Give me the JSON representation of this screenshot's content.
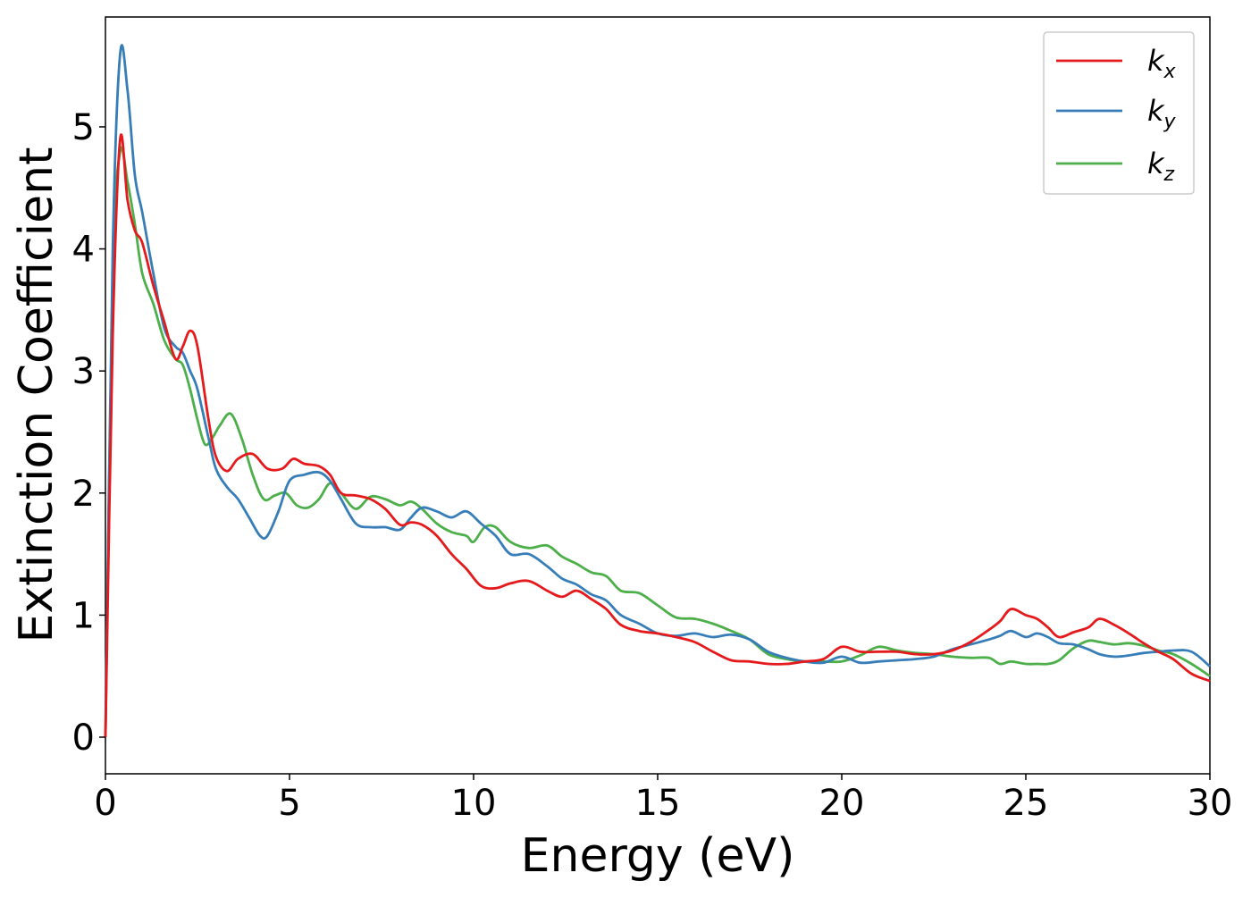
{
  "chart_data": {
    "type": "line",
    "title": "",
    "xlabel": "Energy (eV)",
    "ylabel": "Extinction Coefficient",
    "xlim": [
      0,
      30
    ],
    "ylim": [
      -0.3,
      5.9
    ],
    "xticks": [
      0,
      5,
      10,
      15,
      20,
      25,
      30
    ],
    "xtick_labels": [
      "0",
      "5",
      "10",
      "15",
      "20",
      "25",
      "30"
    ],
    "yticks": [
      0,
      1,
      2,
      3,
      4,
      5
    ],
    "ytick_labels": [
      "0",
      "1",
      "2",
      "3",
      "4",
      "5"
    ],
    "grid": false,
    "legend_position": "top-right",
    "series": [
      {
        "name": "k_x",
        "name_base": "k",
        "name_sub": "x",
        "color": "#e41a1c",
        "x": [
          0,
          0.2,
          0.4,
          0.6,
          0.8,
          1.0,
          1.3,
          1.6,
          1.9,
          2.1,
          2.3,
          2.5,
          2.8,
          3.0,
          3.3,
          3.6,
          4.0,
          4.4,
          4.8,
          5.1,
          5.4,
          5.8,
          6.1,
          6.4,
          6.8,
          7.2,
          7.6,
          8.0,
          8.3,
          8.6,
          9.0,
          9.4,
          9.8,
          10.2,
          10.6,
          11.0,
          11.5,
          12.0,
          12.4,
          12.8,
          13.2,
          13.6,
          14.0,
          14.5,
          15.0,
          15.5,
          16.0,
          16.5,
          17.0,
          17.5,
          18.0,
          18.5,
          19.0,
          19.5,
          20.0,
          20.5,
          21.0,
          21.5,
          22.0,
          22.5,
          23.0,
          23.5,
          24.0,
          24.3,
          24.6,
          25.0,
          25.3,
          25.6,
          25.9,
          26.3,
          26.7,
          27.0,
          27.4,
          27.8,
          28.2,
          28.6,
          29.0,
          29.5,
          30.0
        ],
        "y": [
          0,
          3.3,
          4.9,
          4.4,
          4.15,
          4.05,
          3.7,
          3.4,
          3.1,
          3.2,
          3.33,
          3.2,
          2.6,
          2.3,
          2.18,
          2.28,
          2.32,
          2.2,
          2.2,
          2.28,
          2.24,
          2.22,
          2.15,
          2.0,
          1.98,
          1.95,
          1.87,
          1.74,
          1.76,
          1.74,
          1.65,
          1.5,
          1.38,
          1.24,
          1.22,
          1.26,
          1.28,
          1.2,
          1.15,
          1.2,
          1.13,
          1.05,
          0.92,
          0.87,
          0.85,
          0.82,
          0.78,
          0.7,
          0.63,
          0.62,
          0.6,
          0.6,
          0.62,
          0.64,
          0.74,
          0.7,
          0.7,
          0.7,
          0.68,
          0.68,
          0.71,
          0.78,
          0.88,
          0.95,
          1.05,
          1.0,
          0.97,
          0.9,
          0.82,
          0.86,
          0.9,
          0.97,
          0.92,
          0.85,
          0.77,
          0.7,
          0.64,
          0.52,
          0.46
        ]
      },
      {
        "name": "k_y",
        "name_base": "k",
        "name_sub": "y",
        "color": "#377eb8",
        "x": [
          0,
          0.2,
          0.4,
          0.6,
          0.8,
          1.0,
          1.3,
          1.6,
          1.9,
          2.1,
          2.3,
          2.5,
          2.8,
          3.0,
          3.3,
          3.6,
          3.9,
          4.2,
          4.4,
          4.7,
          5.0,
          5.4,
          5.8,
          6.1,
          6.4,
          6.8,
          7.2,
          7.6,
          8.0,
          8.3,
          8.6,
          9.0,
          9.4,
          9.8,
          10.2,
          10.6,
          11.0,
          11.5,
          12.0,
          12.4,
          12.8,
          13.2,
          13.6,
          14.0,
          14.5,
          15.0,
          15.5,
          16.0,
          16.5,
          17.0,
          17.5,
          18.0,
          18.5,
          19.0,
          19.5,
          20.0,
          20.5,
          21.0,
          21.5,
          22.0,
          22.5,
          23.0,
          23.5,
          24.0,
          24.3,
          24.6,
          25.0,
          25.3,
          25.6,
          25.9,
          26.3,
          26.7,
          27.0,
          27.4,
          27.8,
          28.2,
          28.6,
          29.0,
          29.5,
          30.0
        ],
        "y": [
          0,
          4.0,
          5.6,
          5.3,
          4.6,
          4.3,
          3.8,
          3.35,
          3.2,
          3.15,
          3.0,
          2.85,
          2.45,
          2.2,
          2.05,
          1.95,
          1.8,
          1.65,
          1.65,
          1.85,
          2.1,
          2.15,
          2.17,
          2.1,
          1.95,
          1.75,
          1.72,
          1.72,
          1.7,
          1.8,
          1.88,
          1.85,
          1.8,
          1.85,
          1.75,
          1.65,
          1.5,
          1.5,
          1.4,
          1.3,
          1.25,
          1.17,
          1.12,
          1.0,
          0.93,
          0.85,
          0.83,
          0.85,
          0.82,
          0.84,
          0.8,
          0.7,
          0.65,
          0.62,
          0.61,
          0.66,
          0.61,
          0.62,
          0.63,
          0.64,
          0.66,
          0.72,
          0.76,
          0.8,
          0.83,
          0.87,
          0.82,
          0.85,
          0.82,
          0.77,
          0.76,
          0.72,
          0.68,
          0.66,
          0.67,
          0.69,
          0.7,
          0.71,
          0.7,
          0.58
        ]
      },
      {
        "name": "k_z",
        "name_base": "k",
        "name_sub": "z",
        "color": "#4daf4a",
        "x": [
          0,
          0.2,
          0.4,
          0.6,
          0.8,
          1.0,
          1.3,
          1.6,
          1.9,
          2.1,
          2.3,
          2.5,
          2.7,
          2.9,
          3.1,
          3.4,
          3.7,
          4.0,
          4.3,
          4.6,
          4.9,
          5.2,
          5.5,
          5.8,
          6.1,
          6.4,
          6.8,
          7.2,
          7.6,
          8.0,
          8.3,
          8.6,
          9.0,
          9.4,
          9.8,
          10.0,
          10.3,
          10.6,
          11.0,
          11.5,
          12.0,
          12.4,
          12.8,
          13.2,
          13.6,
          14.0,
          14.5,
          15.0,
          15.5,
          16.0,
          16.5,
          17.0,
          17.5,
          18.0,
          18.5,
          19.0,
          19.5,
          20.0,
          20.5,
          21.0,
          21.5,
          22.0,
          22.5,
          23.0,
          23.5,
          24.0,
          24.3,
          24.6,
          25.0,
          25.3,
          25.6,
          25.9,
          26.3,
          26.7,
          27.0,
          27.4,
          27.8,
          28.2,
          28.6,
          29.0,
          29.5,
          30.0
        ],
        "y": [
          0,
          3.8,
          4.8,
          4.55,
          4.2,
          3.8,
          3.55,
          3.25,
          3.1,
          3.05,
          2.85,
          2.6,
          2.4,
          2.45,
          2.55,
          2.65,
          2.45,
          2.15,
          1.95,
          1.98,
          2.0,
          1.9,
          1.88,
          1.95,
          2.08,
          2.0,
          1.87,
          1.97,
          1.95,
          1.9,
          1.93,
          1.87,
          1.75,
          1.68,
          1.65,
          1.6,
          1.72,
          1.72,
          1.6,
          1.55,
          1.57,
          1.48,
          1.42,
          1.35,
          1.32,
          1.2,
          1.18,
          1.08,
          0.98,
          0.97,
          0.93,
          0.87,
          0.8,
          0.68,
          0.64,
          0.62,
          0.62,
          0.62,
          0.67,
          0.74,
          0.71,
          0.69,
          0.68,
          0.66,
          0.65,
          0.65,
          0.6,
          0.62,
          0.6,
          0.6,
          0.6,
          0.63,
          0.73,
          0.79,
          0.78,
          0.76,
          0.77,
          0.75,
          0.71,
          0.68,
          0.6,
          0.5
        ]
      }
    ]
  }
}
